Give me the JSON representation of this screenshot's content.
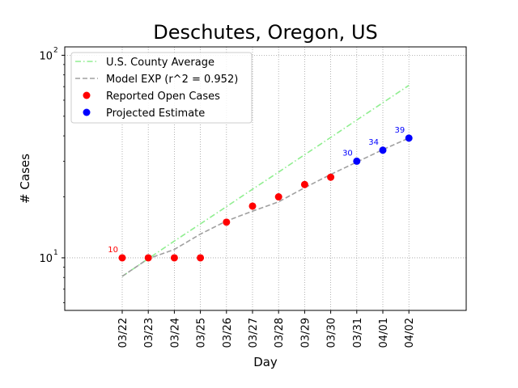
{
  "chart_data": {
    "type": "line",
    "title": "Deschutes, Oregon, US",
    "xlabel": "Day",
    "ylabel": "# Cases",
    "y_scale": "log",
    "ylim": [
      5.5,
      110
    ],
    "y_ticks": [
      {
        "value": 10,
        "base": "10",
        "exp": "1"
      },
      {
        "value": 100,
        "base": "10",
        "exp": "2"
      }
    ],
    "categories": [
      "03/22",
      "03/23",
      "03/24",
      "03/25",
      "03/26",
      "03/27",
      "03/28",
      "03/29",
      "03/30",
      "03/31",
      "04/01",
      "04/02"
    ],
    "grid": true,
    "legend_position": "upper-left",
    "series": [
      {
        "name": "U.S. County Average",
        "kind": "line",
        "style": "dash-dot",
        "color": "#90ee90",
        "values": [
          8.1,
          9.9,
          12.1,
          14.7,
          17.9,
          21.8,
          26.5,
          32.3,
          39.3,
          47.9,
          58.3,
          71.0
        ]
      },
      {
        "name": "Model EXP (r^2 = 0.952)",
        "kind": "line",
        "style": "dashed",
        "color": "#a0a0a0",
        "values": [
          8.1,
          9.9,
          11.0,
          13.1,
          15.2,
          17.0,
          18.9,
          22.2,
          25.8,
          29.7,
          34.2,
          39.0
        ]
      },
      {
        "name": "Reported Open Cases",
        "kind": "scatter",
        "color": "#ff0000",
        "x": [
          "03/22",
          "03/23",
          "03/24",
          "03/25",
          "03/26",
          "03/27",
          "03/28",
          "03/29",
          "03/30"
        ],
        "values": [
          10,
          10,
          10,
          10,
          15,
          18,
          20,
          23,
          25
        ]
      },
      {
        "name": "Projected Estimate",
        "kind": "scatter",
        "color": "#0000ff",
        "x": [
          "03/31",
          "04/01",
          "04/02"
        ],
        "values": [
          30,
          34,
          39
        ]
      }
    ],
    "annotations": [
      {
        "text": "10",
        "x": "03/22",
        "y": 10,
        "color": "#ff0000"
      },
      {
        "text": "30",
        "x": "03/31",
        "y": 30,
        "color": "#0000ff"
      },
      {
        "text": "34",
        "x": "04/01",
        "y": 34,
        "color": "#0000ff"
      },
      {
        "text": "39",
        "x": "04/02",
        "y": 39,
        "color": "#0000ff"
      }
    ]
  }
}
